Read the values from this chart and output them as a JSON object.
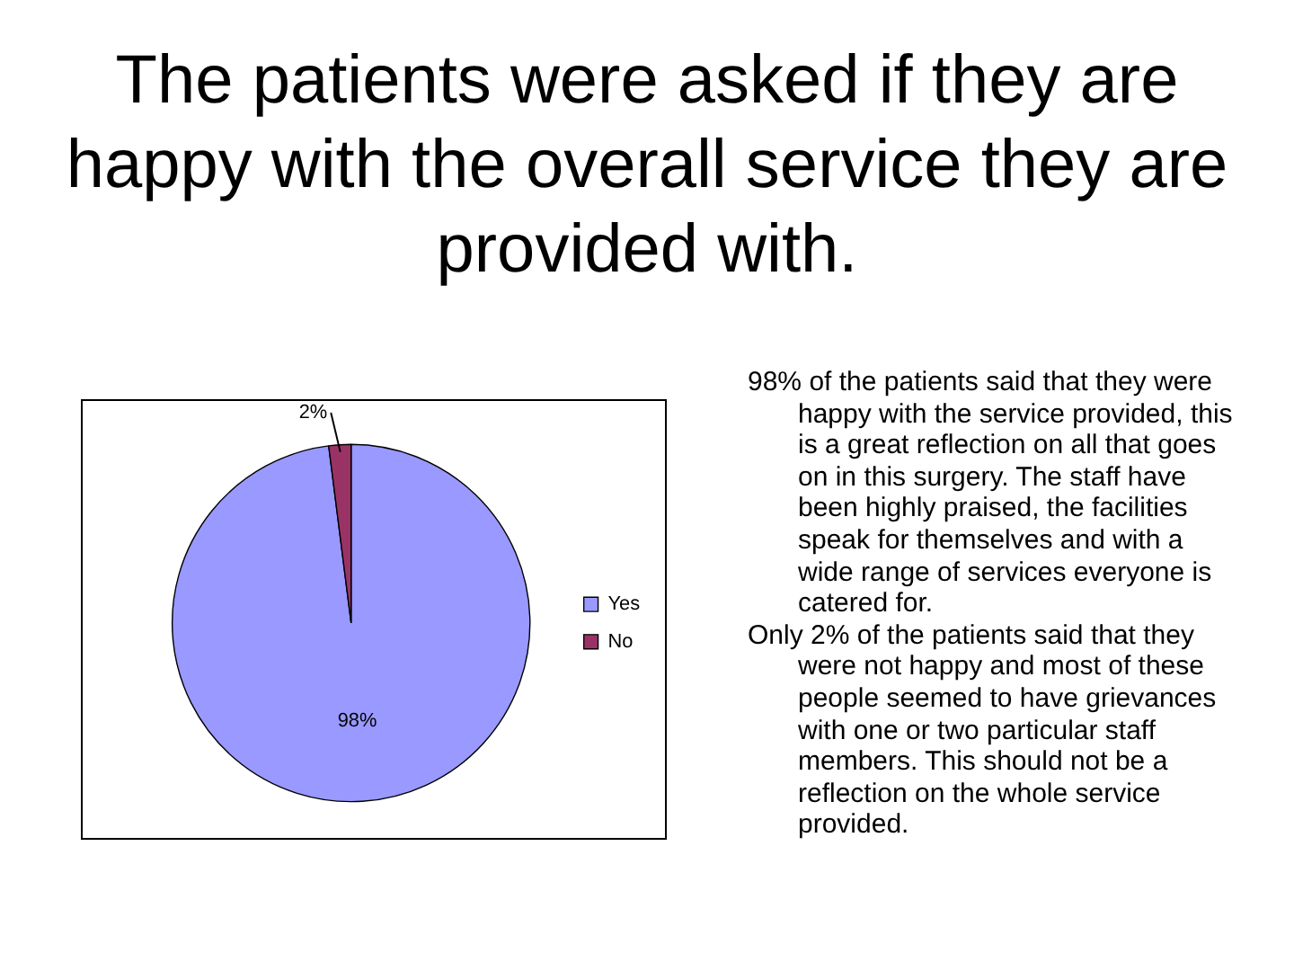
{
  "chart_data": {
    "type": "pie",
    "title": "The patients were asked if they are happy with the overall service they are provided with.",
    "categories": [
      "Yes",
      "No"
    ],
    "values": [
      98,
      2
    ],
    "colors": [
      "#9999ff",
      "#993366"
    ],
    "value_labels": [
      "98%",
      "2%"
    ],
    "legend": "right",
    "annotations": [
      "98% of the patients said that they were happy with the service provided, this is a great reflection on all that goes on in this surgery. The staff have been highly praised, the facilities speak for themselves and with a wide range of services everyone is catered for.",
      "Only 2% of the patients said that they were not happy and most of these people seemed to have grievances with one or two particular staff members. This should not be a reflection on the whole service provided."
    ]
  }
}
